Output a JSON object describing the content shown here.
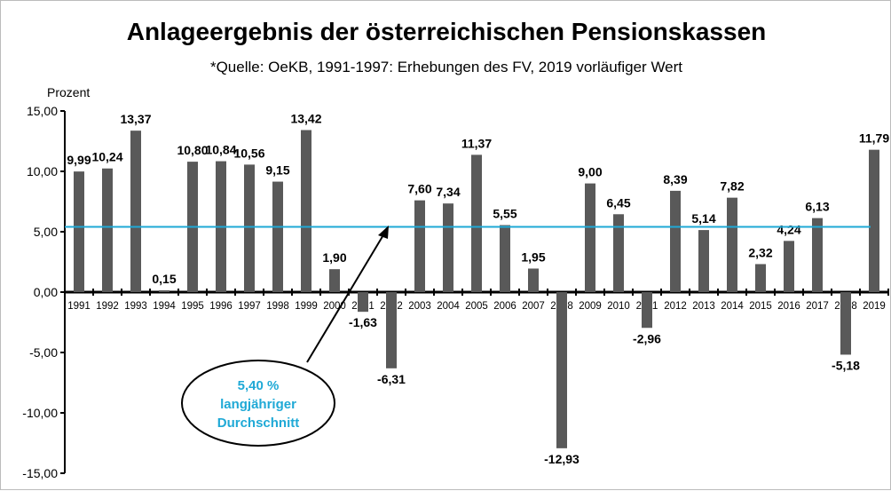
{
  "chart_data": {
    "type": "bar",
    "title": "Anlageergebnis der österreichischen Pensionskassen",
    "subtitle": "*Quelle: OeKB, 1991-1997: Erhebungen des FV, 2019 vorläufiger Wert",
    "ylabel": "Prozent",
    "xlabel": "",
    "ylim": [
      -15,
      15
    ],
    "yticks": [
      "15,00",
      "10,00",
      "5,00",
      "0,00",
      "-5,00",
      "-10,00",
      "-15,00"
    ],
    "categories": [
      "1991",
      "1992",
      "1993",
      "1994",
      "1995",
      "1996",
      "1997",
      "1998",
      "1999",
      "2000",
      "2001",
      "2002",
      "2003",
      "2004",
      "2005",
      "2006",
      "2007",
      "2008",
      "2009",
      "2010",
      "2011",
      "2012",
      "2013",
      "2014",
      "2015",
      "2016",
      "2017",
      "2018",
      "2019"
    ],
    "values": [
      9.99,
      10.24,
      13.37,
      0.15,
      10.8,
      10.84,
      10.56,
      9.15,
      13.42,
      1.9,
      -1.63,
      -6.31,
      7.6,
      7.34,
      11.37,
      5.55,
      1.95,
      -12.93,
      9.0,
      6.45,
      -2.96,
      8.39,
      5.14,
      7.82,
      2.32,
      4.24,
      6.13,
      -5.18,
      11.79
    ],
    "labels": [
      "9,99",
      "10,24",
      "13,37",
      "0,15",
      "10,80",
      "10,84",
      "10,56",
      "9,15",
      "13,42",
      "1,90",
      "-1,63",
      "-6,31",
      "7,60",
      "7,34",
      "11,37",
      "5,55",
      "1,95",
      "-12,93",
      "9,00",
      "6,45",
      "-2,96",
      "8,39",
      "5,14",
      "7,82",
      "2,32",
      "4,24",
      "6,13",
      "-5,18",
      "11,79"
    ],
    "bar_color": "#595959",
    "average": {
      "value": 5.4,
      "color": "#1fa9d6",
      "label_lines": [
        "5,40 %",
        "langjähriger",
        "Durchschnitt"
      ]
    },
    "grid": false
  }
}
